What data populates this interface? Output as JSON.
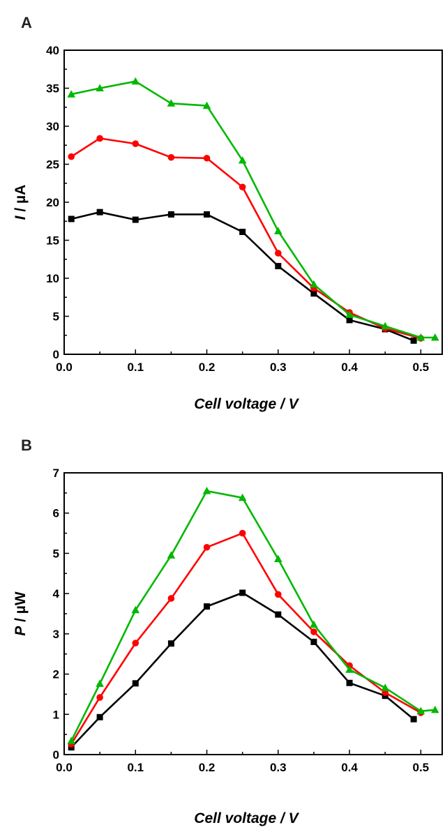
{
  "chart_data": [
    {
      "type": "line",
      "panel_label": "A",
      "xlabel": "Cell voltage / V",
      "ylabel_italic": "I",
      "ylabel_rest": " / µA",
      "xlim": [
        0.0,
        0.53
      ],
      "ylim": [
        0,
        40
      ],
      "xticks": [
        0.0,
        0.1,
        0.2,
        0.3,
        0.4,
        0.5
      ],
      "xtick_labels": [
        "0.0",
        "0.1",
        "0.2",
        "0.3",
        "0.4",
        "0.5"
      ],
      "yticks": [
        0,
        5,
        10,
        15,
        20,
        25,
        30,
        35,
        40
      ],
      "ytick_labels": [
        "0",
        "5",
        "10",
        "15",
        "20",
        "25",
        "30",
        "35",
        "40"
      ],
      "grid": false,
      "series": [
        {
          "color": "#000000",
          "marker": "square",
          "x": [
            0.01,
            0.05,
            0.1,
            0.15,
            0.2,
            0.25,
            0.3,
            0.35,
            0.4,
            0.45,
            0.49
          ],
          "y": [
            17.8,
            18.7,
            17.7,
            18.4,
            18.4,
            16.1,
            11.6,
            8.0,
            4.5,
            3.3,
            1.8
          ]
        },
        {
          "color": "#ff0000",
          "marker": "circle",
          "x": [
            0.01,
            0.05,
            0.1,
            0.15,
            0.2,
            0.25,
            0.3,
            0.35,
            0.4,
            0.45,
            0.5
          ],
          "y": [
            26.0,
            28.4,
            27.7,
            25.9,
            25.8,
            22.0,
            13.3,
            8.7,
            5.5,
            3.4,
            2.1
          ]
        },
        {
          "color": "#00b800",
          "marker": "triangle",
          "x": [
            0.01,
            0.05,
            0.1,
            0.15,
            0.2,
            0.25,
            0.3,
            0.35,
            0.4,
            0.45,
            0.5,
            0.52
          ],
          "y": [
            34.2,
            35.0,
            35.9,
            33.0,
            32.7,
            25.5,
            16.2,
            9.2,
            5.2,
            3.7,
            2.2,
            2.2
          ]
        }
      ]
    },
    {
      "type": "line",
      "panel_label": "B",
      "xlabel": "Cell voltage / V",
      "ylabel_italic": "P",
      "ylabel_rest": " / µW",
      "xlim": [
        0.0,
        0.53
      ],
      "ylim": [
        0,
        7
      ],
      "xticks": [
        0.0,
        0.1,
        0.2,
        0.3,
        0.4,
        0.5
      ],
      "xtick_labels": [
        "0.0",
        "0.1",
        "0.2",
        "0.3",
        "0.4",
        "0.5"
      ],
      "yticks": [
        0,
        1,
        2,
        3,
        4,
        5,
        6,
        7
      ],
      "ytick_labels": [
        "0",
        "1",
        "2",
        "3",
        "4",
        "5",
        "6",
        "7"
      ],
      "grid": false,
      "series": [
        {
          "color": "#000000",
          "marker": "square",
          "x": [
            0.01,
            0.05,
            0.1,
            0.15,
            0.2,
            0.25,
            0.3,
            0.35,
            0.4,
            0.45,
            0.49
          ],
          "y": [
            0.18,
            0.93,
            1.77,
            2.76,
            3.68,
            4.02,
            3.48,
            2.8,
            1.78,
            1.46,
            0.88
          ]
        },
        {
          "color": "#ff0000",
          "marker": "circle",
          "x": [
            0.01,
            0.05,
            0.1,
            0.15,
            0.2,
            0.25,
            0.3,
            0.35,
            0.4,
            0.45,
            0.5
          ],
          "y": [
            0.26,
            1.42,
            2.77,
            3.88,
            5.15,
            5.5,
            3.98,
            3.05,
            2.21,
            1.54,
            1.04
          ]
        },
        {
          "color": "#00b800",
          "marker": "triangle",
          "x": [
            0.01,
            0.05,
            0.1,
            0.15,
            0.2,
            0.25,
            0.3,
            0.35,
            0.4,
            0.45,
            0.5,
            0.52
          ],
          "y": [
            0.34,
            1.76,
            3.59,
            4.95,
            6.55,
            6.38,
            4.86,
            3.23,
            2.11,
            1.66,
            1.08,
            1.11
          ]
        }
      ]
    }
  ]
}
